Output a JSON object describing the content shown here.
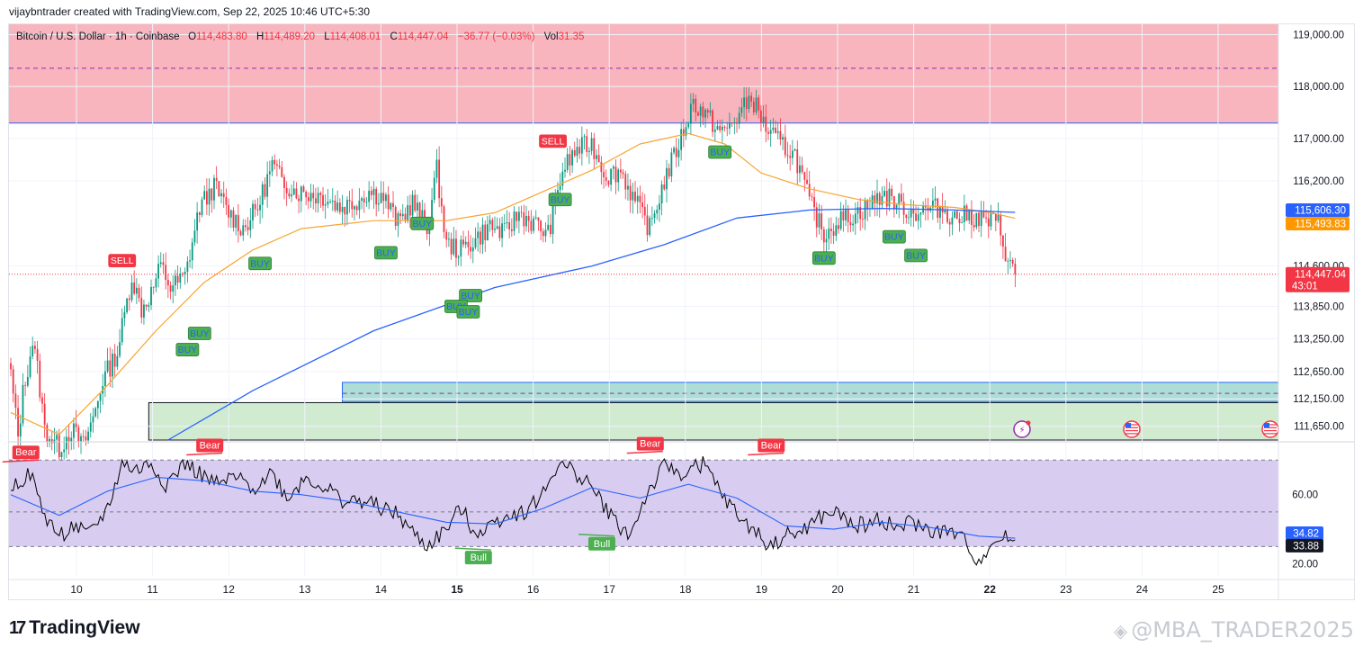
{
  "header": {
    "attribution": "vijaybntrader created with TradingView.com, Sep 22, 2025 10:46 UTC+5:30"
  },
  "legend": {
    "symbol": "Bitcoin / U.S. Dollar · 1h · Coinbase",
    "open_key": "O",
    "open": "114,483.80",
    "high_key": "H",
    "high": "114,489.20",
    "low_key": "L",
    "low": "114,408.01",
    "close_key": "C",
    "close": "114,447.04",
    "change": "−36.77 (−0.03%)",
    "vol_key": "Vol",
    "vol": "31.35"
  },
  "footer": {
    "brand": "TradingView",
    "brand_mark": "17",
    "watermark": "@MBA_TRADER2025"
  },
  "chart_data": {
    "type": "candlestick",
    "y_scale": "log",
    "ylim": [
      111400,
      119200
    ],
    "price_ticks": [
      "119,000.00",
      "118,000.00",
      "117,000.00",
      "116,200.00",
      "114,600.00",
      "113,850.00",
      "113,250.00",
      "112,650.00",
      "112,150.00",
      "111,650.00"
    ],
    "x_labels": [
      "10",
      "11",
      "12",
      "13",
      "14",
      "15",
      "16",
      "17",
      "18",
      "19",
      "20",
      "21",
      "22",
      "23",
      "24",
      "25"
    ],
    "bold_x_labels": [
      "15",
      "22"
    ],
    "price_labels": [
      {
        "text": "115,606.30",
        "color": "#2962ff"
      },
      {
        "text": "115,493.83",
        "color": "#ff9800"
      },
      {
        "text": "114,447.04",
        "sub": "43:01",
        "color": "#f23645"
      }
    ],
    "colors": {
      "up": "#089981",
      "down": "#f23645",
      "ma_fast": "#f7a531",
      "ma_slow": "#2962ff",
      "rsi": "#000000",
      "rsi_ma": "#2962ff"
    },
    "candle_anchors": [
      [
        0,
        112600
      ],
      [
        3,
        111450
      ],
      [
        5,
        112250
      ],
      [
        9,
        113200
      ],
      [
        11,
        112700
      ],
      [
        14,
        111600
      ],
      [
        20,
        111250
      ],
      [
        25,
        111600
      ],
      [
        30,
        111300
      ],
      [
        34,
        111800
      ],
      [
        38,
        112500
      ],
      [
        44,
        113000
      ],
      [
        50,
        114400
      ],
      [
        54,
        113800
      ],
      [
        58,
        114100
      ],
      [
        62,
        114600
      ],
      [
        66,
        114200
      ],
      [
        72,
        114400
      ],
      [
        78,
        115700
      ],
      [
        84,
        116100
      ],
      [
        90,
        115600
      ],
      [
        96,
        115300
      ],
      [
        102,
        115700
      ],
      [
        108,
        116500
      ],
      [
        112,
        116200
      ],
      [
        118,
        116000
      ],
      [
        124,
        115950
      ],
      [
        130,
        115900
      ],
      [
        136,
        115700
      ],
      [
        142,
        115800
      ],
      [
        148,
        116000
      ],
      [
        154,
        115900
      ],
      [
        160,
        115400
      ],
      [
        166,
        115800
      ],
      [
        172,
        115300
      ],
      [
        176,
        116400
      ],
      [
        180,
        115000
      ],
      [
        186,
        114900
      ],
      [
        192,
        115100
      ],
      [
        198,
        115350
      ],
      [
        204,
        115200
      ],
      [
        210,
        115600
      ],
      [
        216,
        115400
      ],
      [
        222,
        115200
      ],
      [
        228,
        116400
      ],
      [
        234,
        116800
      ],
      [
        240,
        116900
      ],
      [
        246,
        116300
      ],
      [
        252,
        116400
      ],
      [
        258,
        115800
      ],
      [
        264,
        115300
      ],
      [
        270,
        116200
      ],
      [
        276,
        116900
      ],
      [
        282,
        117700
      ],
      [
        288,
        117400
      ],
      [
        294,
        117100
      ],
      [
        300,
        117400
      ],
      [
        306,
        117800
      ],
      [
        312,
        117200
      ],
      [
        318,
        116900
      ],
      [
        324,
        116700
      ],
      [
        330,
        115800
      ],
      [
        336,
        115200
      ],
      [
        342,
        115450
      ],
      [
        348,
        115550
      ],
      [
        354,
        115700
      ],
      [
        360,
        115950
      ],
      [
        366,
        115800
      ],
      [
        372,
        115600
      ],
      [
        378,
        115650
      ],
      [
        384,
        115700
      ],
      [
        390,
        115500
      ],
      [
        396,
        115550
      ],
      [
        402,
        115450
      ],
      [
        408,
        115400
      ],
      [
        412,
        114700
      ],
      [
        415,
        114447
      ]
    ],
    "ma_fast_anchors": [
      [
        0,
        111900
      ],
      [
        20,
        111500
      ],
      [
        40,
        112400
      ],
      [
        60,
        113400
      ],
      [
        80,
        114300
      ],
      [
        100,
        114900
      ],
      [
        120,
        115300
      ],
      [
        150,
        115450
      ],
      [
        180,
        115450
      ],
      [
        200,
        115600
      ],
      [
        220,
        116000
      ],
      [
        240,
        116400
      ],
      [
        260,
        116900
      ],
      [
        280,
        117100
      ],
      [
        295,
        116900
      ],
      [
        310,
        116350
      ],
      [
        330,
        116050
      ],
      [
        350,
        115850
      ],
      [
        370,
        115750
      ],
      [
        390,
        115700
      ],
      [
        405,
        115600
      ],
      [
        415,
        115494
      ]
    ],
    "ma_slow_anchors": [
      [
        65,
        111400
      ],
      [
        100,
        112300
      ],
      [
        150,
        113400
      ],
      [
        200,
        114200
      ],
      [
        240,
        114600
      ],
      [
        270,
        115000
      ],
      [
        300,
        115500
      ],
      [
        330,
        115650
      ],
      [
        360,
        115680
      ],
      [
        390,
        115650
      ],
      [
        415,
        115606
      ]
    ],
    "zones": [
      {
        "kind": "supply",
        "from_x": 0,
        "to_x": "right",
        "top": 119200,
        "bottom": 117300,
        "midline": 118350,
        "fill": "#f7a8b1",
        "edge": "#2962ff"
      },
      {
        "kind": "demand",
        "from_x": 137,
        "to_x": "right",
        "top": 112450,
        "bottom": 112100,
        "midline": 112250,
        "fill": "#9fd8cf",
        "edge": "#2962ff"
      },
      {
        "kind": "support",
        "from_x": 57,
        "to_x": "right",
        "top": 112080,
        "bottom": 111400,
        "fill": "#c8e8c8",
        "edge": "#131722"
      }
    ],
    "signals": [
      {
        "text": "SELL",
        "i": 46,
        "price": 114550,
        "dir": "above"
      },
      {
        "text": "BUY",
        "i": 78,
        "price": 113500,
        "dir": "below"
      },
      {
        "text": "BUY",
        "i": 73,
        "price": 113200,
        "dir": "below"
      },
      {
        "text": "BUY",
        "i": 103,
        "price": 114800,
        "dir": "below"
      },
      {
        "text": "BUY",
        "i": 155,
        "price": 115000,
        "dir": "below"
      },
      {
        "text": "BUY",
        "i": 170,
        "price": 115550,
        "dir": "below"
      },
      {
        "text": "BUY",
        "i": 190,
        "price": 114200,
        "dir": "below"
      },
      {
        "text": "BUY",
        "i": 184,
        "price": 114000,
        "dir": "below"
      },
      {
        "text": "BUY",
        "i": 189,
        "price": 113900,
        "dir": "below"
      },
      {
        "text": "SELL",
        "i": 224,
        "price": 116800,
        "dir": "above"
      },
      {
        "text": "BUY",
        "i": 227,
        "price": 116000,
        "dir": "below"
      },
      {
        "text": "BUY",
        "i": 293,
        "price": 116900,
        "dir": "below"
      },
      {
        "text": "BUY",
        "i": 336,
        "price": 114900,
        "dir": "below"
      },
      {
        "text": "BUY",
        "i": 365,
        "price": 115300,
        "dir": "below"
      },
      {
        "text": "BUY",
        "i": 374,
        "price": 114950,
        "dir": "below"
      }
    ],
    "rsi": {
      "ylim": [
        13,
        90
      ],
      "ticks": [
        "60.00",
        "20.00"
      ],
      "levels": [
        80,
        50,
        30
      ],
      "band_fill": "#d8cdf0",
      "value_labels": [
        {
          "text": "34.82",
          "color": "#2962ff"
        },
        {
          "text": "33.88",
          "color": "#131722"
        }
      ],
      "anchors": [
        [
          0,
          65
        ],
        [
          8,
          72
        ],
        [
          14,
          48
        ],
        [
          20,
          36
        ],
        [
          26,
          42
        ],
        [
          32,
          36
        ],
        [
          40,
          52
        ],
        [
          46,
          78
        ],
        [
          52,
          74
        ],
        [
          58,
          78
        ],
        [
          64,
          66
        ],
        [
          72,
          78
        ],
        [
          80,
          70
        ],
        [
          86,
          65
        ],
        [
          92,
          70
        ],
        [
          100,
          64
        ],
        [
          108,
          73
        ],
        [
          114,
          58
        ],
        [
          122,
          70
        ],
        [
          130,
          64
        ],
        [
          138,
          56
        ],
        [
          146,
          56
        ],
        [
          154,
          52
        ],
        [
          160,
          48
        ],
        [
          166,
          38
        ],
        [
          172,
          30
        ],
        [
          180,
          40
        ],
        [
          186,
          52
        ],
        [
          192,
          38
        ],
        [
          198,
          42
        ],
        [
          204,
          48
        ],
        [
          212,
          50
        ],
        [
          220,
          60
        ],
        [
          226,
          78
        ],
        [
          232,
          74
        ],
        [
          238,
          68
        ],
        [
          244,
          56
        ],
        [
          250,
          44
        ],
        [
          256,
          36
        ],
        [
          262,
          58
        ],
        [
          270,
          76
        ],
        [
          278,
          72
        ],
        [
          286,
          78
        ],
        [
          292,
          64
        ],
        [
          300,
          48
        ],
        [
          308,
          38
        ],
        [
          314,
          30
        ],
        [
          320,
          36
        ],
        [
          326,
          38
        ],
        [
          334,
          46
        ],
        [
          340,
          50
        ],
        [
          346,
          44
        ],
        [
          352,
          42
        ],
        [
          360,
          46
        ],
        [
          366,
          40
        ],
        [
          372,
          44
        ],
        [
          378,
          40
        ],
        [
          384,
          38
        ],
        [
          390,
          38
        ],
        [
          396,
          30
        ],
        [
          400,
          20
        ],
        [
          404,
          31
        ],
        [
          410,
          34.8
        ],
        [
          415,
          33.88
        ]
      ],
      "ma_anchors": [
        [
          0,
          60
        ],
        [
          20,
          48
        ],
        [
          40,
          62
        ],
        [
          60,
          70
        ],
        [
          80,
          68
        ],
        [
          100,
          62
        ],
        [
          120,
          60
        ],
        [
          140,
          56
        ],
        [
          160,
          50
        ],
        [
          180,
          44
        ],
        [
          200,
          43
        ],
        [
          220,
          52
        ],
        [
          240,
          64
        ],
        [
          260,
          58
        ],
        [
          280,
          66
        ],
        [
          300,
          58
        ],
        [
          320,
          42
        ],
        [
          340,
          40
        ],
        [
          360,
          44
        ],
        [
          380,
          41
        ],
        [
          400,
          36
        ],
        [
          415,
          34.82
        ]
      ],
      "signals": [
        {
          "text": "Bear",
          "i": 4,
          "value": 80,
          "dir": "above"
        },
        {
          "text": "Bear",
          "i": 80,
          "value": 84,
          "dir": "above"
        },
        {
          "text": "Bull",
          "i": 191,
          "value": 28,
          "dir": "below"
        },
        {
          "text": "Bull",
          "i": 242,
          "value": 36,
          "dir": "below"
        },
        {
          "text": "Bear",
          "i": 262,
          "value": 85,
          "dir": "above"
        },
        {
          "text": "Bear",
          "i": 312,
          "value": 84,
          "dir": "above"
        }
      ]
    },
    "event_icons": [
      "lightning-icon",
      "us-flag-icon",
      "us-flag-icon"
    ]
  }
}
